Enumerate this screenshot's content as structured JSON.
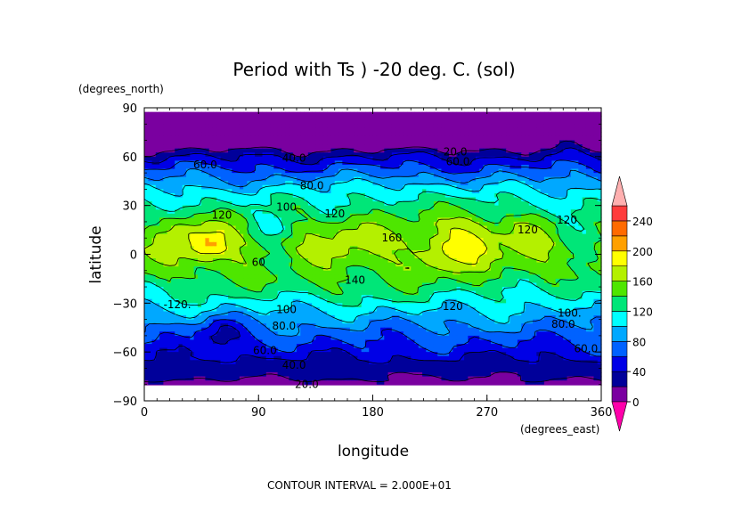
{
  "chart_data": {
    "type": "heatmap",
    "title": "Period with Ts ) -20 deg. C. (sol)",
    "xlabel": "longitude",
    "ylabel": "latitude",
    "x_units": "(degrees_east)",
    "y_units": "(degrees_north)",
    "xlim": [
      0,
      360
    ],
    "ylim": [
      -90,
      90
    ],
    "x_ticks": [
      "0",
      "90",
      "180",
      "270",
      "360"
    ],
    "y_ticks": [
      "90",
      "60",
      "30",
      "0",
      "-30",
      "-60",
      "-90"
    ],
    "footer": "CONTOUR INTERVAL = 2.000E+01",
    "colorbar": {
      "levels": [
        "0",
        "40",
        "80",
        "120",
        "160",
        "200",
        "240"
      ],
      "bands": [
        {
          "from": 0,
          "to": 20,
          "color": "#7a00a0"
        },
        {
          "from": 20,
          "to": 40,
          "color": "#00009a"
        },
        {
          "from": 40,
          "to": 60,
          "color": "#0000e6"
        },
        {
          "from": 60,
          "to": 80,
          "color": "#0062ff"
        },
        {
          "from": 80,
          "to": 100,
          "color": "#00a8ff"
        },
        {
          "from": 100,
          "to": 120,
          "color": "#00ffff"
        },
        {
          "from": 120,
          "to": 140,
          "color": "#00e678"
        },
        {
          "from": 140,
          "to": 160,
          "color": "#4ee600"
        },
        {
          "from": 160,
          "to": 180,
          "color": "#b4f000"
        },
        {
          "from": 180,
          "to": 200,
          "color": "#ffff00"
        },
        {
          "from": 200,
          "to": 220,
          "color": "#ffa000"
        },
        {
          "from": 220,
          "to": 240,
          "color": "#ff6a00"
        },
        {
          "from": 240,
          "to": 260,
          "color": "#ff3c3c"
        },
        {
          "from": 260,
          "to": 280,
          "color": "#ff8080"
        },
        {
          "from": 280,
          "to": 300,
          "color": "#ffb4b4"
        }
      ],
      "under_color": "#ff00aa",
      "over_color": "#ffb0b0"
    },
    "contour_labels": [
      {
        "text": "20.0",
        "lon": 245,
        "lat": 63
      },
      {
        "text": "40.0",
        "lon": 118,
        "lat": 59
      },
      {
        "text": "60.0",
        "lon": 247,
        "lat": 57
      },
      {
        "text": "60.0",
        "lon": 48,
        "lat": 55
      },
      {
        "text": "80.0",
        "lon": 132,
        "lat": 42
      },
      {
        "text": "100",
        "lon": 112,
        "lat": 29
      },
      {
        "text": "120",
        "lon": 61,
        "lat": 24
      },
      {
        "text": "120",
        "lon": 150,
        "lat": 25
      },
      {
        "text": "120",
        "lon": 302,
        "lat": 15
      },
      {
        "text": "120",
        "lon": 333,
        "lat": 21
      },
      {
        "text": "160",
        "lon": 195,
        "lat": 10
      },
      {
        "text": "60",
        "lon": 90,
        "lat": -5
      },
      {
        "text": "140",
        "lon": 166,
        "lat": -16
      },
      {
        "text": "-120.",
        "lon": 26,
        "lat": -31
      },
      {
        "text": "120",
        "lon": 243,
        "lat": -32
      },
      {
        "text": "100",
        "lon": 112,
        "lat": -34
      },
      {
        "text": "100.",
        "lon": 335,
        "lat": -36
      },
      {
        "text": "80.0",
        "lon": 110,
        "lat": -44
      },
      {
        "text": "80.0",
        "lon": 330,
        "lat": -43
      },
      {
        "text": "60.0",
        "lon": 95,
        "lat": -59
      },
      {
        "text": "60.0",
        "lon": 348,
        "lat": -58
      },
      {
        "text": "40.0",
        "lon": 118,
        "lat": -68
      },
      {
        "text": "20.0",
        "lon": 128,
        "lat": -80
      }
    ],
    "zonal_profile": [
      {
        "lat": 90,
        "value": 5
      },
      {
        "lat": 85,
        "value": 5
      },
      {
        "lat": 66,
        "value": 10
      },
      {
        "lat": 62,
        "value": 30
      },
      {
        "lat": 56,
        "value": 52
      },
      {
        "lat": 50,
        "value": 70
      },
      {
        "lat": 44,
        "value": 90
      },
      {
        "lat": 37,
        "value": 110
      },
      {
        "lat": 28,
        "value": 130
      },
      {
        "lat": 18,
        "value": 148
      },
      {
        "lat": 8,
        "value": 158
      },
      {
        "lat": 0,
        "value": 158
      },
      {
        "lat": -8,
        "value": 150
      },
      {
        "lat": -17,
        "value": 136
      },
      {
        "lat": -26,
        "value": 120
      },
      {
        "lat": -33,
        "value": 104
      },
      {
        "lat": -40,
        "value": 88
      },
      {
        "lat": -48,
        "value": 72
      },
      {
        "lat": -57,
        "value": 55
      },
      {
        "lat": -64,
        "value": 40
      },
      {
        "lat": -72,
        "value": 28
      },
      {
        "lat": -78,
        "value": 18
      },
      {
        "lat": -82,
        "value": 5
      },
      {
        "lat": -90,
        "value": 5
      }
    ],
    "features": [
      {
        "lon": 50,
        "lat": 5,
        "rlon": 16,
        "rlat": 10,
        "amp": 45
      },
      {
        "lon": 255,
        "lat": 10,
        "rlon": 22,
        "rlat": 14,
        "amp": 35
      },
      {
        "lon": 30,
        "lat": 15,
        "rlon": 14,
        "rlat": 10,
        "amp": 20
      },
      {
        "lon": 230,
        "lat": -2,
        "rlon": 18,
        "rlat": 10,
        "amp": 22
      },
      {
        "lon": 160,
        "lat": 12,
        "rlon": 14,
        "rlat": 10,
        "amp": 18
      },
      {
        "lon": 300,
        "lat": 14,
        "rlon": 18,
        "rlat": 8,
        "amp": 12
      },
      {
        "lon": 100,
        "lat": 18,
        "rlon": 16,
        "rlat": 10,
        "amp": -35
      },
      {
        "lon": 105,
        "lat": -5,
        "rlon": 20,
        "rlat": 8,
        "amp": -18
      },
      {
        "lon": 345,
        "lat": 15,
        "rlon": 22,
        "rlat": 14,
        "amp": -30
      },
      {
        "lon": 330,
        "lat": -30,
        "rlon": 30,
        "rlat": 12,
        "amp": -10
      },
      {
        "lon": 60,
        "lat": -48,
        "rlon": 18,
        "rlat": 10,
        "amp": -35
      },
      {
        "lon": 200,
        "lat": -74,
        "rlon": 10,
        "rlat": 3,
        "amp": -12
      },
      {
        "lon": 290,
        "lat": -74,
        "rlon": 12,
        "rlat": 3,
        "amp": -12
      },
      {
        "lon": 335,
        "lat": 66,
        "rlon": 10,
        "rlat": 4,
        "amp": 20
      },
      {
        "lon": 200,
        "lat": 40,
        "rlon": 30,
        "rlat": 10,
        "amp": 15
      },
      {
        "lon": 150,
        "lat": -22,
        "rlon": 40,
        "rlat": 8,
        "amp": 10
      }
    ]
  }
}
